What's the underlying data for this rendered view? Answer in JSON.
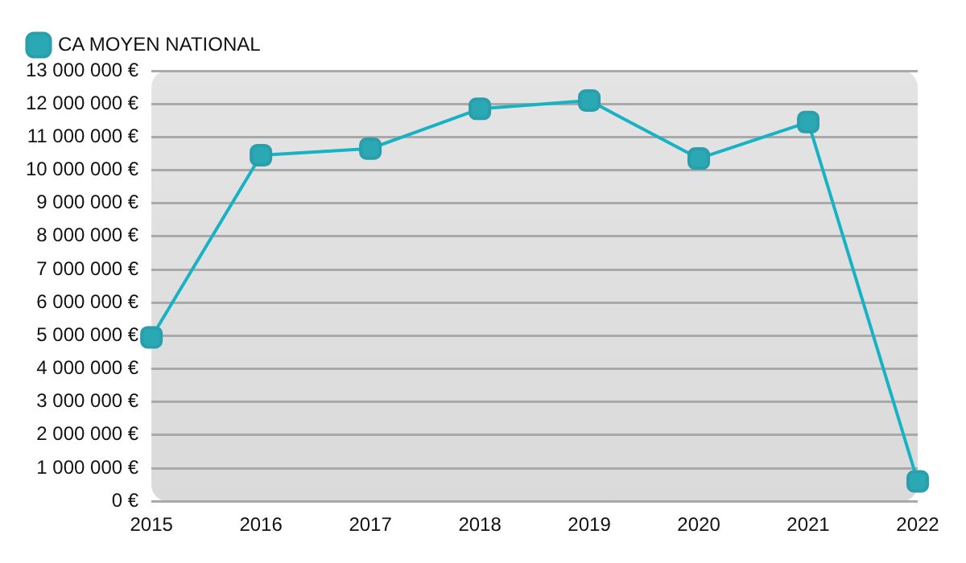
{
  "chart_data": {
    "type": "line",
    "categories": [
      "2015",
      "2016",
      "2017",
      "2018",
      "2019",
      "2020",
      "2021",
      "2022"
    ],
    "series": [
      {
        "name": "CA MOYEN NATIONAL",
        "color": "#17b3c4",
        "values": [
          4950000,
          10450000,
          10650000,
          11850000,
          12100000,
          10350000,
          11450000,
          600000
        ]
      }
    ],
    "ylim": [
      0,
      13000000
    ],
    "yticks": [
      {
        "value": 0,
        "label": "0 €"
      },
      {
        "value": 1000000,
        "label": "1 000 000 €"
      },
      {
        "value": 2000000,
        "label": "2 000 000 €"
      },
      {
        "value": 3000000,
        "label": "3 000 000 €"
      },
      {
        "value": 4000000,
        "label": "4 000 000 €"
      },
      {
        "value": 5000000,
        "label": "5 000 000 €"
      },
      {
        "value": 6000000,
        "label": "6 000 000 €"
      },
      {
        "value": 7000000,
        "label": "7 000 000 €"
      },
      {
        "value": 8000000,
        "label": "8 000 000 €"
      },
      {
        "value": 9000000,
        "label": "9 000 000 €"
      },
      {
        "value": 10000000,
        "label": "10 000 000 €"
      },
      {
        "value": 11000000,
        "label": "11 000 000 €"
      },
      {
        "value": 12000000,
        "label": "12 000 000 €"
      },
      {
        "value": 13000000,
        "label": "13 000 000 €"
      }
    ],
    "grid": "y",
    "legend": "top left",
    "marker": "square",
    "line_style": "solid"
  }
}
